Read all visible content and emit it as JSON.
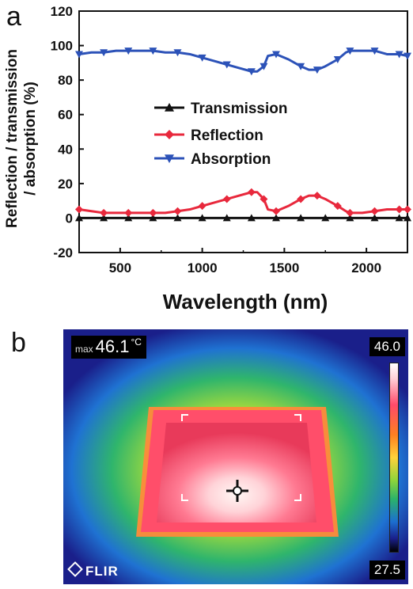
{
  "panels": {
    "a": "a",
    "b": "b"
  },
  "chart_data": {
    "type": "line",
    "xlabel": "Wavelength (nm)",
    "ylabel_lines": [
      "Reflection / transmission",
      "/ absorption (%)"
    ],
    "xlim": [
      250,
      2250
    ],
    "ylim": [
      -20,
      120
    ],
    "xticks": [
      "500",
      "1000",
      "1500",
      "2000"
    ],
    "yticks": [
      "-20",
      "0",
      "20",
      "40",
      "60",
      "80",
      "100",
      "120"
    ],
    "legend_position": "center",
    "series": [
      {
        "name": "Transmission",
        "color": "#111111",
        "marker": "triangle-up",
        "x": [
          250,
          325,
          400,
          475,
          550,
          625,
          700,
          775,
          850,
          925,
          1000,
          1075,
          1150,
          1225,
          1300,
          1375,
          1450,
          1525,
          1600,
          1675,
          1750,
          1825,
          1900,
          1975,
          2050,
          2125,
          2200,
          2250
        ],
        "y": [
          0,
          0,
          0,
          0,
          0,
          0,
          0,
          0,
          0,
          0,
          0,
          0,
          0,
          0,
          0,
          0,
          0,
          0,
          0,
          0,
          0,
          0,
          0,
          0,
          0,
          0,
          0,
          0
        ]
      },
      {
        "name": "Reflection",
        "color": "#e8283c",
        "marker": "diamond",
        "x": [
          250,
          325,
          400,
          475,
          550,
          625,
          700,
          775,
          850,
          925,
          1000,
          1075,
          1150,
          1225,
          1300,
          1335,
          1375,
          1400,
          1450,
          1525,
          1600,
          1650,
          1700,
          1750,
          1825,
          1875,
          1900,
          1975,
          2050,
          2125,
          2200,
          2250
        ],
        "y": [
          5,
          4,
          3,
          3,
          3,
          3,
          3,
          3,
          4,
          5,
          7,
          9,
          11,
          13,
          15,
          15,
          11,
          5,
          4,
          7,
          11,
          13,
          13,
          11,
          7,
          4,
          3,
          3,
          4,
          5,
          5,
          5
        ]
      },
      {
        "name": "Absorption",
        "color": "#2c52b8",
        "marker": "triangle-down",
        "x": [
          250,
          325,
          400,
          475,
          550,
          625,
          700,
          775,
          850,
          925,
          1000,
          1075,
          1150,
          1225,
          1300,
          1335,
          1375,
          1400,
          1450,
          1525,
          1600,
          1650,
          1700,
          1750,
          1825,
          1875,
          1900,
          1975,
          2050,
          2125,
          2200,
          2250
        ],
        "y": [
          95,
          96,
          96,
          97,
          97,
          97,
          97,
          96,
          96,
          95,
          93,
          91,
          89,
          87,
          85,
          85,
          88,
          94,
          95,
          92,
          88,
          86,
          86,
          88,
          92,
          96,
          97,
          97,
          97,
          95,
          95,
          94
        ]
      }
    ]
  },
  "thermal": {
    "max_label": "max",
    "max_value": "46.1",
    "unit": "°C",
    "scale_max": "46.0",
    "scale_min": "27.5",
    "brand": "FLIR",
    "colors": {
      "bg": "#1a1f8a",
      "hot": "#fff0ee",
      "edge": "#e83a5a"
    }
  }
}
